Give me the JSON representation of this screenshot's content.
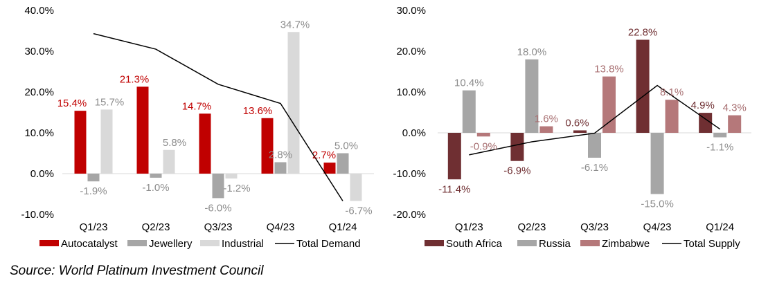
{
  "source": "Source: World Platinum Investment Council",
  "chart_data": [
    {
      "type": "bar",
      "title": "",
      "categories": [
        "Q1/23",
        "Q2/23",
        "Q3/23",
        "Q4/23",
        "Q1/24"
      ],
      "ylim": [
        -10,
        40
      ],
      "yticks": [
        -10,
        0,
        10,
        20,
        30,
        40
      ],
      "ytick_labels": [
        "-10.0%",
        "0.0%",
        "10.0%",
        "20.0%",
        "30.0%",
        "40.0%"
      ],
      "series": [
        {
          "name": "Autocatalyst",
          "color": "#c00000",
          "label_color": "#c00000",
          "values": [
            15.4,
            21.3,
            14.7,
            13.6,
            2.7
          ],
          "labels": [
            "15.4%",
            "21.3%",
            "14.7%",
            "13.6%",
            "2.7%"
          ]
        },
        {
          "name": "Jewellery",
          "color": "#a6a6a6",
          "label_color": "#8c8c8c",
          "values": [
            -1.9,
            -1.0,
            -6.0,
            2.8,
            5.0
          ],
          "labels": [
            "-1.9%",
            "-1.0%",
            "-6.0%",
            "2.8%",
            "5.0%"
          ]
        },
        {
          "name": "Industrial",
          "color": "#d9d9d9",
          "label_color": "#8c8c8c",
          "values": [
            15.7,
            5.8,
            -1.2,
            34.7,
            -6.7
          ],
          "labels": [
            "15.7%",
            "5.8%",
            "-1.2%",
            "34.7%",
            "-6.7%"
          ]
        }
      ],
      "line": {
        "name": "Total Demand",
        "color": "#000000",
        "values": [
          34.3,
          30.5,
          21.9,
          17.2,
          -6.7
        ]
      },
      "legend": [
        "Autocatalyst",
        "Jewellery",
        "Industrial",
        "Total Demand"
      ]
    },
    {
      "type": "bar",
      "title": "",
      "categories": [
        "Q1/23",
        "Q2/23",
        "Q3/23",
        "Q4/23",
        "Q1/24"
      ],
      "ylim": [
        -20,
        30
      ],
      "yticks": [
        -20,
        -10,
        0,
        10,
        20,
        30
      ],
      "ytick_labels": [
        "-20.0%",
        "-10.0%",
        "0.0%",
        "10.0%",
        "20.0%",
        "30.0%"
      ],
      "series": [
        {
          "name": "South Africa",
          "color": "#6f2f32",
          "label_color": "#6f2f32",
          "values": [
            -11.4,
            -6.9,
            0.6,
            22.8,
            4.9
          ],
          "labels": [
            "-11.4%",
            "-6.9%",
            "0.6%",
            "22.8%",
            "4.9%"
          ]
        },
        {
          "name": "Russia",
          "color": "#a6a6a6",
          "label_color": "#8c8c8c",
          "values": [
            10.4,
            18.0,
            -6.1,
            -15.0,
            -1.1
          ],
          "labels": [
            "10.4%",
            "18.0%",
            "-6.1%",
            "-15.0%",
            "-1.1%"
          ]
        },
        {
          "name": "Zimbabwe",
          "color": "#b5787a",
          "label_color": "#a76e70",
          "values": [
            -0.9,
            1.6,
            13.8,
            8.1,
            4.3
          ],
          "labels": [
            "-0.9%",
            "1.6%",
            "13.8%",
            "8.1%",
            "4.3%"
          ]
        }
      ],
      "line": {
        "name": "Total Supply",
        "color": "#000000",
        "values": [
          -5.4,
          -2.2,
          -0.1,
          11.6,
          0.9
        ]
      },
      "legend": [
        "South Africa",
        "Russia",
        "Zimbabwe",
        "Total Supply"
      ]
    }
  ]
}
